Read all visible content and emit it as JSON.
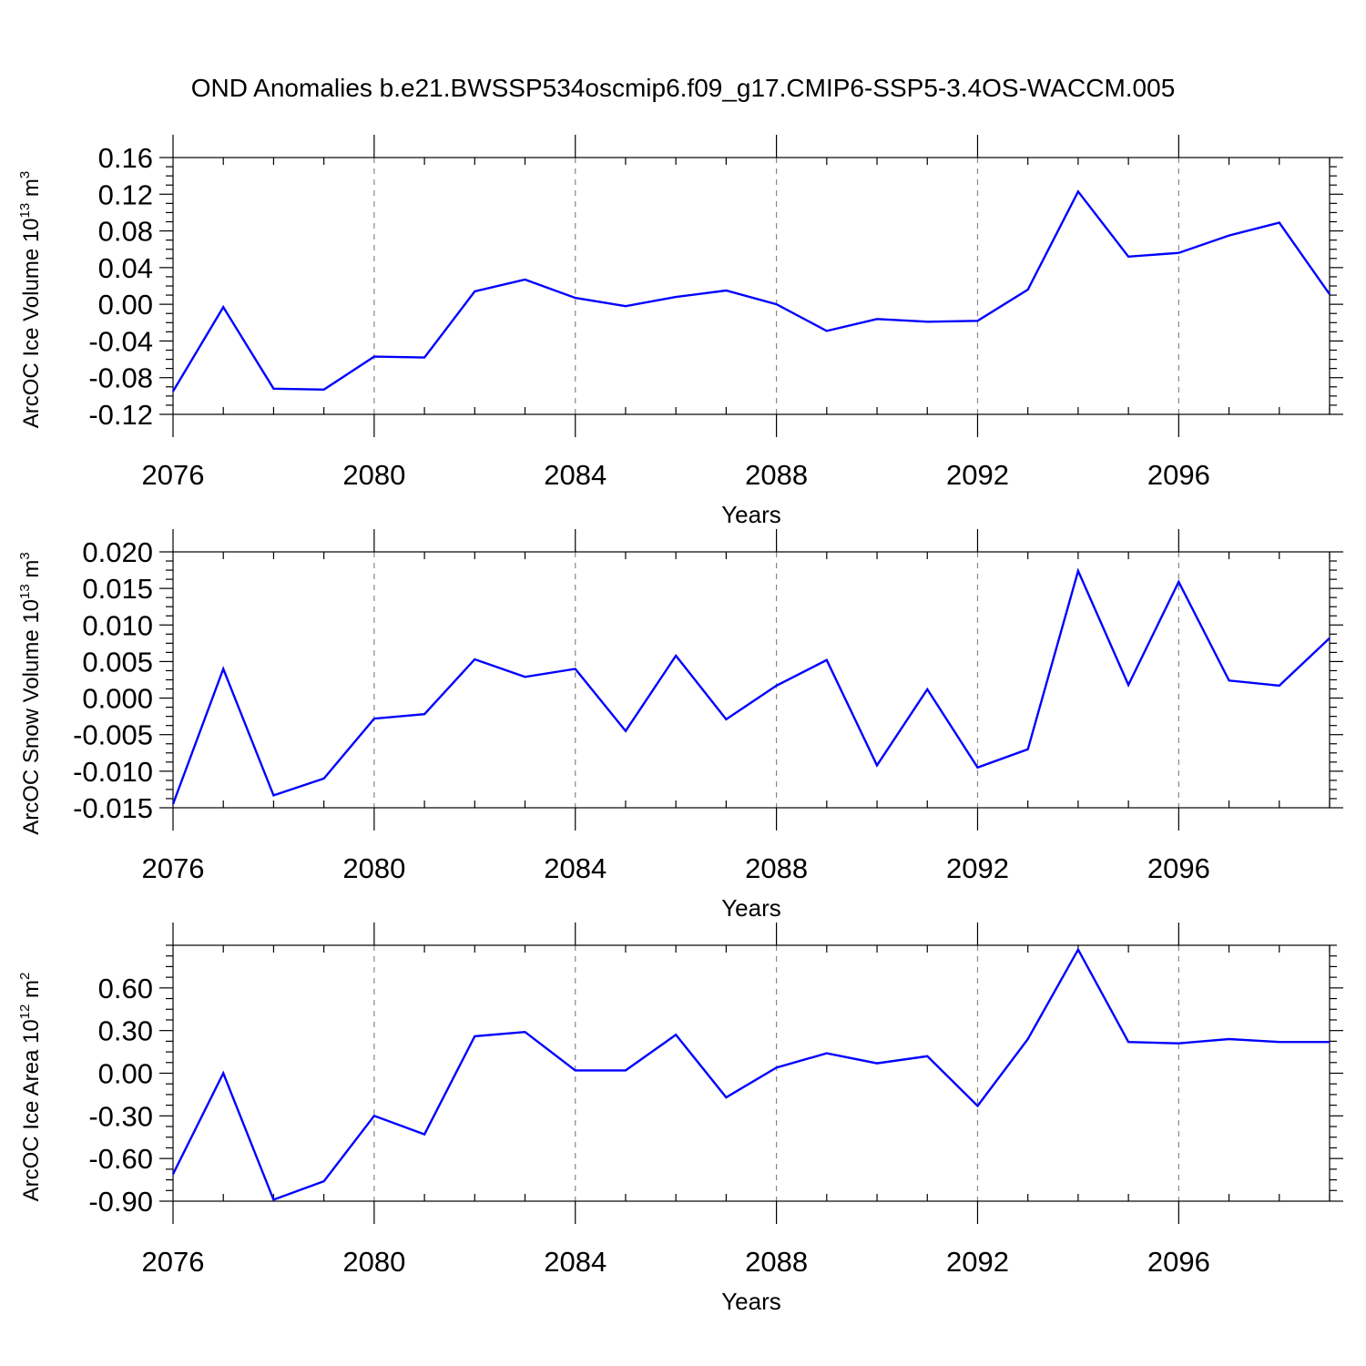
{
  "title": "OND Anomalies b.e21.BWSSP534oscmip6.f09_g17.CMIP6-SSP5-3.4OS-WACCM.005",
  "colors": {
    "line": "#0000ff"
  },
  "chart_data": [
    {
      "type": "line",
      "ylabel": {
        "main": "ArcOC Ice Volume 10",
        "exp": "13",
        "unit": " m",
        "unit_exp": "3"
      },
      "xlabel": "Years",
      "xlim": [
        2076,
        2099
      ],
      "ylim": [
        -0.12,
        0.16
      ],
      "xticks": [
        "2076",
        "2080",
        "2084",
        "2088",
        "2092",
        "2096"
      ],
      "yticks": [
        "0.16",
        "0.12",
        "0.08",
        "0.04",
        "0.00",
        "-0.04",
        "-0.08",
        "-0.12"
      ],
      "x": [
        2076,
        2077,
        2078,
        2079,
        2080,
        2081,
        2082,
        2083,
        2084,
        2085,
        2086,
        2087,
        2088,
        2089,
        2090,
        2091,
        2092,
        2093,
        2094,
        2095,
        2096,
        2097,
        2098,
        2099
      ],
      "series": [
        {
          "name": "Ice Volume",
          "values": [
            -0.095,
            -0.003,
            -0.092,
            -0.093,
            -0.057,
            -0.058,
            0.014,
            0.027,
            0.007,
            -0.002,
            0.008,
            0.015,
            0.0,
            -0.029,
            -0.016,
            -0.019,
            -0.018,
            0.016,
            0.123,
            0.052,
            0.056,
            0.075,
            0.089,
            0.011
          ]
        }
      ]
    },
    {
      "type": "line",
      "ylabel": {
        "main": "ArcOC Snow Volume 10",
        "exp": "13",
        "unit": " m",
        "unit_exp": "3"
      },
      "xlabel": "Years",
      "xlim": [
        2076,
        2099
      ],
      "ylim": [
        -0.015,
        0.02
      ],
      "xticks": [
        "2076",
        "2080",
        "2084",
        "2088",
        "2092",
        "2096"
      ],
      "yticks": [
        "0.020",
        "0.015",
        "0.010",
        "0.005",
        "0.000",
        "-0.005",
        "-0.010",
        "-0.015"
      ],
      "x": [
        2076,
        2077,
        2078,
        2079,
        2080,
        2081,
        2082,
        2083,
        2084,
        2085,
        2086,
        2087,
        2088,
        2089,
        2090,
        2091,
        2092,
        2093,
        2094,
        2095,
        2096,
        2097,
        2098,
        2099
      ],
      "series": [
        {
          "name": "Snow Volume",
          "values": [
            -0.0145,
            0.004,
            -0.0133,
            -0.011,
            -0.0028,
            -0.0022,
            0.0053,
            0.0029,
            0.004,
            -0.0045,
            0.0058,
            -0.0029,
            0.0017,
            0.0052,
            -0.0092,
            0.0012,
            -0.0095,
            -0.007,
            0.0174,
            0.0018,
            0.0159,
            0.0024,
            0.0017,
            0.0082
          ]
        }
      ]
    },
    {
      "type": "line",
      "ylabel": {
        "main": "ArcOC Ice Area 10",
        "exp": "12",
        "unit": " m",
        "unit_exp": "2"
      },
      "xlabel": "Years",
      "xlim": [
        2076,
        2099
      ],
      "ylim": [
        -0.9,
        0.9
      ],
      "xticks": [
        "2076",
        "2080",
        "2084",
        "2088",
        "2092",
        "2096"
      ],
      "yticks": [
        "0.60",
        "0.30",
        "0.00",
        "-0.30",
        "-0.60",
        "-0.90"
      ],
      "x": [
        2076,
        2077,
        2078,
        2079,
        2080,
        2081,
        2082,
        2083,
        2084,
        2085,
        2086,
        2087,
        2088,
        2089,
        2090,
        2091,
        2092,
        2093,
        2094,
        2095,
        2096,
        2097,
        2098,
        2099
      ],
      "series": [
        {
          "name": "Ice Area",
          "values": [
            -0.71,
            0.0,
            -0.89,
            -0.76,
            -0.3,
            -0.43,
            0.26,
            0.29,
            0.02,
            0.02,
            0.27,
            -0.17,
            0.04,
            0.14,
            0.07,
            0.12,
            -0.23,
            0.24,
            0.87,
            0.22,
            0.21,
            0.24,
            0.22,
            0.22
          ]
        }
      ]
    }
  ]
}
